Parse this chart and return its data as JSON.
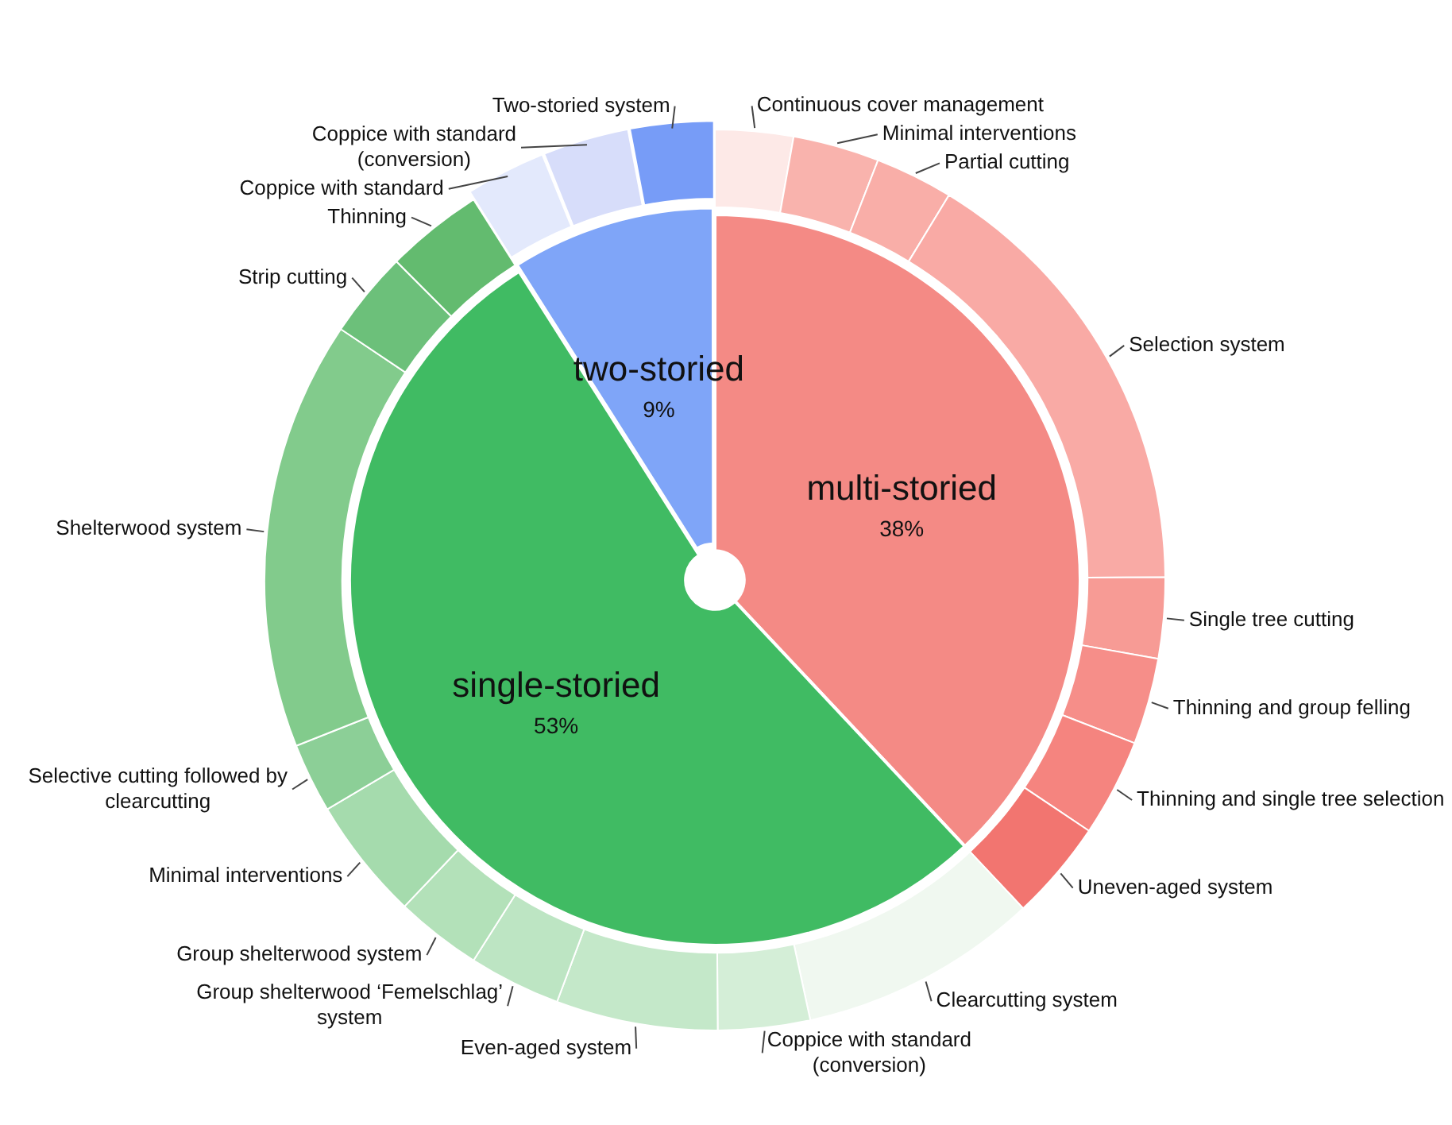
{
  "chart_data": [
    {
      "type": "pie",
      "categories": [
        "multi-storied",
        "single-storied",
        "two-storied"
      ],
      "values": [
        38,
        53,
        9
      ],
      "colors": [
        "#f48a85",
        "#40bb63",
        "#7fa5f8"
      ],
      "value_labels": [
        "38%",
        "53%",
        "9%"
      ]
    },
    {
      "type": "donut",
      "categories": [
        "Continuous cover management",
        "Minimal interventions",
        "Partial cutting",
        "Selection system",
        "Single tree cutting",
        "Thinning and group felling",
        "Thinning and single tree selection",
        "Uneven-aged system",
        "Clearcutting system",
        "Coppice with standard (conversion)",
        "Even-aged system",
        "Group shelterwood ‘Femelschlag’ system",
        "Group shelterwood system",
        "Minimal interventions",
        "Selective cutting followed by clearcutting",
        "Shelterwood system",
        "Strip cutting",
        "Thinning",
        "Coppice with standard",
        "Coppice with standard (conversion)",
        "Two-storied system"
      ],
      "values": [
        2.8,
        3.1,
        2.8,
        16.2,
        2.9,
        3.1,
        3.5,
        3.6,
        8.6,
        3.3,
        5.8,
        3.3,
        3.1,
        4.4,
        2.5,
        15.4,
        3.1,
        3.5,
        2.9,
        3.1,
        3.0
      ],
      "colors": [
        "#fde9e7",
        "#f9b3ad",
        "#f9aea8",
        "#f9aaa5",
        "#f79b95",
        "#f68e89",
        "#f5847f",
        "#f27570",
        "#f0f8f0",
        "#d4eed7",
        "#c4e8c9",
        "#bde5c3",
        "#b3e1b9",
        "#a5dbad",
        "#8ccf97",
        "#82cb8c",
        "#6cc07a",
        "#63bb6f",
        "#e3e9fc",
        "#d7ddfa",
        "#779cf7"
      ]
    }
  ]
}
